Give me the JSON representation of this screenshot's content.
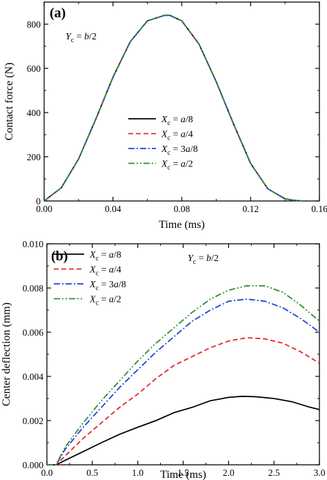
{
  "chart_data": [
    {
      "type": "line",
      "panel_label": "(a)",
      "annotation": {
        "main": "Y",
        "sub": "c",
        "rest": " = b/2"
      },
      "xlabel": "Time (ms)",
      "ylabel": "Contact force (N)",
      "xlim": [
        0,
        0.16
      ],
      "ylim": [
        0,
        900
      ],
      "xticks": [
        "0.00",
        "0.04",
        "0.08",
        "0.12",
        "0.16"
      ],
      "yticks": [
        "0",
        "200",
        "400",
        "600",
        "800"
      ],
      "legend_position": "center-right",
      "series": [
        {
          "name": {
            "main": "X",
            "sub": "c",
            "rest": " = a/8"
          },
          "color": "#000000",
          "dash": "solid",
          "x": [
            0,
            0.01,
            0.02,
            0.03,
            0.04,
            0.05,
            0.06,
            0.07,
            0.073,
            0.08,
            0.09,
            0.1,
            0.11,
            0.12,
            0.13,
            0.14,
            0.145,
            0.15
          ],
          "y": [
            0,
            60,
            190,
            370,
            560,
            720,
            815,
            840,
            840,
            815,
            710,
            540,
            350,
            170,
            55,
            10,
            3,
            0
          ]
        },
        {
          "name": {
            "main": "X",
            "sub": "c",
            "rest": " = a/4"
          },
          "color": "#e3242b",
          "dash": "dash",
          "x": [
            0,
            0.01,
            0.02,
            0.03,
            0.04,
            0.05,
            0.06,
            0.07,
            0.073,
            0.08,
            0.09,
            0.1,
            0.11,
            0.12,
            0.13,
            0.14,
            0.145,
            0.15
          ],
          "y": [
            0,
            60,
            190,
            370,
            560,
            720,
            815,
            840,
            840,
            815,
            710,
            540,
            350,
            170,
            55,
            10,
            3,
            0
          ]
        },
        {
          "name": {
            "main": "X",
            "sub": "c",
            "rest": " = 3a/8"
          },
          "color": "#1f3fd6",
          "dash": "dashdot",
          "x": [
            0,
            0.01,
            0.02,
            0.03,
            0.04,
            0.05,
            0.06,
            0.07,
            0.073,
            0.08,
            0.09,
            0.1,
            0.11,
            0.12,
            0.13,
            0.14,
            0.145,
            0.15
          ],
          "y": [
            0,
            60,
            190,
            370,
            560,
            720,
            815,
            840,
            840,
            815,
            710,
            540,
            350,
            170,
            55,
            10,
            3,
            0
          ]
        },
        {
          "name": {
            "main": "X",
            "sub": "c",
            "rest": " = a/2"
          },
          "color": "#2e8b2e",
          "dash": "dashdotdot",
          "x": [
            0,
            0.01,
            0.02,
            0.03,
            0.04,
            0.05,
            0.06,
            0.07,
            0.073,
            0.08,
            0.09,
            0.1,
            0.11,
            0.12,
            0.13,
            0.14,
            0.145,
            0.15
          ],
          "y": [
            0,
            60,
            190,
            370,
            560,
            720,
            815,
            840,
            840,
            815,
            710,
            540,
            350,
            170,
            55,
            10,
            3,
            0
          ]
        }
      ]
    },
    {
      "type": "line",
      "panel_label": "(b)",
      "annotation": {
        "main": "Y",
        "sub": "c",
        "rest": " = b/2"
      },
      "xlabel": "Time (ms)",
      "ylabel": "Center deflection (mm)",
      "xlim": [
        0,
        3.0
      ],
      "ylim": [
        0,
        0.01
      ],
      "xticks": [
        "0.0",
        "0.5",
        "1.0",
        "1.5",
        "2.0",
        "2.5",
        "3.0"
      ],
      "yticks": [
        "0.000",
        "0.002",
        "0.004",
        "0.006",
        "0.008",
        "0.010"
      ],
      "legend_position": "top-left",
      "series": [
        {
          "name": {
            "main": "X",
            "sub": "c",
            "rest": " = a/8"
          },
          "color": "#000000",
          "dash": "solid",
          "x": [
            0,
            0.05,
            0.1,
            0.2,
            0.4,
            0.6,
            0.8,
            1.0,
            1.2,
            1.4,
            1.6,
            1.8,
            2.0,
            2.15,
            2.3,
            2.5,
            2.7,
            2.9,
            3.0
          ],
          "y": [
            0,
            0,
            0,
            0.0002,
            0.0006,
            0.001,
            0.00138,
            0.0017,
            0.002,
            0.00236,
            0.0026,
            0.0029,
            0.00305,
            0.0031,
            0.00308,
            0.003,
            0.00285,
            0.0026,
            0.0025
          ]
        },
        {
          "name": {
            "main": "X",
            "sub": "c",
            "rest": " = a/4"
          },
          "color": "#e3242b",
          "dash": "dash",
          "x": [
            0,
            0.05,
            0.1,
            0.2,
            0.4,
            0.6,
            0.8,
            1.0,
            1.2,
            1.4,
            1.6,
            1.8,
            2.0,
            2.2,
            2.4,
            2.6,
            2.8,
            3.0
          ],
          "y": [
            0,
            0,
            0,
            0.0004,
            0.0012,
            0.0019,
            0.0026,
            0.0032,
            0.0039,
            0.0045,
            0.0049,
            0.0053,
            0.0056,
            0.00575,
            0.0057,
            0.0055,
            0.0051,
            0.0046
          ]
        },
        {
          "name": {
            "main": "X",
            "sub": "c",
            "rest": " = 3a/8"
          },
          "color": "#1f3fd6",
          "dash": "dashdot",
          "x": [
            0,
            0.05,
            0.1,
            0.2,
            0.4,
            0.6,
            0.8,
            1.0,
            1.2,
            1.4,
            1.6,
            1.8,
            2.0,
            2.2,
            2.4,
            2.6,
            2.8,
            3.0
          ],
          "y": [
            0,
            0,
            0,
            0.0007,
            0.0017,
            0.0026,
            0.0035,
            0.0043,
            0.0051,
            0.0058,
            0.0065,
            0.007,
            0.0074,
            0.0075,
            0.0074,
            0.0071,
            0.0066,
            0.006
          ]
        },
        {
          "name": {
            "main": "X",
            "sub": "c",
            "rest": " = a/2"
          },
          "color": "#2e8b2e",
          "dash": "dashdotdot",
          "x": [
            0,
            0.05,
            0.1,
            0.2,
            0.4,
            0.6,
            0.8,
            1.0,
            1.2,
            1.4,
            1.6,
            1.8,
            2.0,
            2.2,
            2.4,
            2.6,
            2.8,
            3.0
          ],
          "y": [
            0,
            0,
            0,
            0.0008,
            0.0019,
            0.0029,
            0.0038,
            0.0047,
            0.0055,
            0.0062,
            0.0069,
            0.0075,
            0.0079,
            0.0081,
            0.0081,
            0.0078,
            0.0072,
            0.0065
          ]
        }
      ]
    }
  ]
}
